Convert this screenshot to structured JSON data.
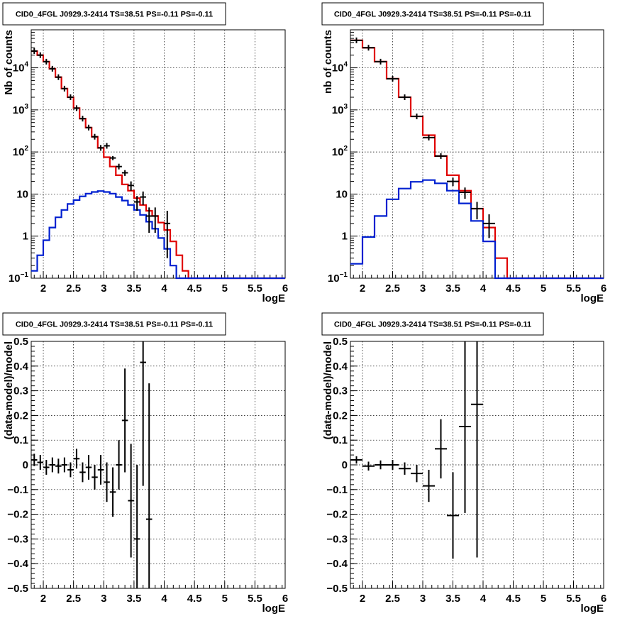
{
  "chart_data": [
    {
      "type": "line",
      "panel": "top-left",
      "title": "CID0_4FGL J0929.3-2414 TS=38.51 PS=-0.11 PS=-0.11",
      "xlabel": "logE",
      "ylabel": "Nb of counts",
      "log_y": true,
      "grid": true,
      "xlim": [
        1.8,
        6
      ],
      "ylim": [
        0.1,
        80000
      ],
      "xticks": [
        "2",
        "2.5",
        "3",
        "3.5",
        "4",
        "4.5",
        "5",
        "5.5",
        "6"
      ],
      "yticks": [
        "10^-1",
        "1",
        "10",
        "10^2",
        "10^3",
        "10^4"
      ],
      "bin_edges": [
        1.8,
        1.9,
        2.0,
        2.1,
        2.2,
        2.3,
        2.4,
        2.5,
        2.6,
        2.7,
        2.8,
        2.9,
        3.0,
        3.1,
        3.2,
        3.3,
        3.4,
        3.5,
        3.6,
        3.7,
        3.8,
        3.9,
        4.0,
        4.1,
        4.2,
        4.3,
        4.4,
        4.5,
        4.6,
        4.7,
        4.8,
        4.9,
        5.0,
        5.1,
        5.2,
        5.3,
        5.4,
        5.5,
        5.6,
        5.7,
        5.8,
        5.9,
        6.0
      ],
      "series": [
        {
          "color": "#e00000",
          "style": "histogram",
          "values": [
            25000,
            20000,
            14000,
            9500,
            6000,
            3200,
            2000,
            1100,
            620,
            380,
            230,
            125,
            75,
            45,
            28,
            17,
            12,
            8,
            5.5,
            4,
            3,
            2.1,
            1.4,
            0.75,
            0.35,
            0.15,
            0.1,
            0.1,
            0.1,
            0.1,
            0.1,
            0.1,
            0.1,
            0.1,
            0.1,
            0.1,
            0.1,
            0.1,
            0.1,
            0.1,
            0.1,
            0.1
          ]
        },
        {
          "color": "#0020d0",
          "style": "histogram",
          "values": [
            0.15,
            0.35,
            0.8,
            1.6,
            2.8,
            4.2,
            5.8,
            7.2,
            8.8,
            10.2,
            11.2,
            11.8,
            11.2,
            10.2,
            8.5,
            7,
            5.5,
            4.2,
            3.2,
            2.2,
            1.5,
            0.9,
            0.5,
            0.2,
            0.1,
            0.1,
            0.1,
            0.1,
            0.1,
            0.1,
            0.1,
            0.1,
            0.1,
            0.1,
            0.1,
            0.1,
            0.1,
            0.1,
            0.1,
            0.1,
            0.1,
            0.1
          ]
        },
        {
          "color": "#000000",
          "style": "points",
          "points": [
            [
              1.85,
              25000,
              0,
              0
            ],
            [
              1.95,
              20000,
              0,
              0
            ],
            [
              2.05,
              14000,
              0,
              0
            ],
            [
              2.15,
              9500,
              0,
              0
            ],
            [
              2.25,
              6000,
              0,
              0
            ],
            [
              2.35,
              3200,
              0,
              0
            ],
            [
              2.45,
              2000,
              0,
              0
            ],
            [
              2.55,
              1100,
              0,
              0
            ],
            [
              2.65,
              620,
              0,
              0
            ],
            [
              2.75,
              380,
              0,
              0
            ],
            [
              2.85,
              230,
              0,
              0
            ],
            [
              2.95,
              125,
              0,
              0
            ],
            [
              3.05,
              140,
              0,
              0
            ],
            [
              3.15,
              72,
              8,
              8
            ],
            [
              3.25,
              45,
              0,
              0
            ],
            [
              3.35,
              32,
              5,
              5
            ],
            [
              3.45,
              16,
              4,
              4
            ],
            [
              3.55,
              6.5,
              2.5,
              2.5
            ],
            [
              3.65,
              8.5,
              3,
              3
            ],
            [
              3.75,
              3,
              1.8,
              1.8
            ],
            [
              3.85,
              3,
              1.8,
              1.8
            ],
            [
              4.05,
              2,
              1.7,
              2
            ]
          ]
        }
      ]
    },
    {
      "type": "line",
      "panel": "top-right",
      "title": "CID0_4FGL J0929.3-2414 TS=38.51 PS=-0.11 PS=-0.11",
      "xlabel": "logE",
      "ylabel": "nb of counts",
      "log_y": true,
      "grid": true,
      "xlim": [
        1.8,
        6
      ],
      "ylim": [
        0.1,
        80000
      ],
      "xticks": [
        "2",
        "2.5",
        "3",
        "3.5",
        "4",
        "4.5",
        "5",
        "5.5",
        "6"
      ],
      "yticks": [
        "10^-1",
        "1",
        "10",
        "10^2",
        "10^3",
        "10^4"
      ],
      "bin_edges": [
        1.8,
        2.0,
        2.2,
        2.4,
        2.6,
        2.8,
        3.0,
        3.2,
        3.4,
        3.6,
        3.8,
        4.0,
        4.2,
        4.4,
        4.6,
        4.8,
        5.0,
        5.2,
        5.4,
        5.6,
        5.8,
        6.0
      ],
      "series": [
        {
          "color": "#e00000",
          "style": "histogram",
          "values": [
            45000,
            30000,
            14000,
            5500,
            2000,
            700,
            250,
            80,
            28,
            12,
            4.5,
            1.6,
            0.3,
            0.1,
            0.1,
            0.1,
            0.1,
            0.1,
            0.1,
            0.1,
            0.1
          ]
        },
        {
          "color": "#0020d0",
          "style": "histogram",
          "values": [
            0.22,
            0.95,
            3.0,
            7.5,
            13.5,
            19.5,
            21.5,
            18,
            12,
            6,
            2.3,
            0.75,
            0.1,
            0.1,
            0.1,
            0.1,
            0.1,
            0.1,
            0.1,
            0.1,
            0.1
          ]
        },
        {
          "color": "#000000",
          "style": "points",
          "points": [
            [
              1.9,
              45000,
              0,
              0
            ],
            [
              2.1,
              30000,
              0,
              0
            ],
            [
              2.3,
              14000,
              0,
              0
            ],
            [
              2.5,
              5500,
              0,
              0
            ],
            [
              2.7,
              2000,
              0,
              0
            ],
            [
              2.9,
              700,
              0,
              0
            ],
            [
              3.1,
              220,
              0,
              0
            ],
            [
              3.3,
              80,
              0,
              0
            ],
            [
              3.5,
              20,
              4.5,
              4.5
            ],
            [
              3.7,
              11,
              3.3,
              3.3
            ],
            [
              3.9,
              4.5,
              2,
              2
            ],
            [
              4.1,
              2,
              1.1,
              1.3
            ]
          ]
        }
      ]
    },
    {
      "type": "scatter",
      "panel": "bottom-left",
      "title": "CID0_4FGL J0929.3-2414 TS=38.51 PS=-0.11 PS=-0.11",
      "xlabel": "logE",
      "ylabel": "(data-model)/model",
      "grid": true,
      "xlim": [
        1.8,
        6
      ],
      "ylim": [
        -0.5,
        0.5
      ],
      "xticks": [
        "2",
        "2.5",
        "3",
        "3.5",
        "4",
        "4.5",
        "5",
        "5.5",
        "6"
      ],
      "yticks": [
        "−0.5",
        "−0.4",
        "−0.3",
        "−0.2",
        "−0.1",
        "0",
        "0.1",
        "0.2",
        "0.3",
        "0.4",
        "0.5"
      ],
      "series": [
        {
          "color": "#000000",
          "x_halfwidth": 0.05,
          "points": [
            [
              1.85,
              0.02,
              0.025
            ],
            [
              1.95,
              0.01,
              0.03
            ],
            [
              2.05,
              -0.01,
              0.03
            ],
            [
              2.15,
              0.0,
              0.03
            ],
            [
              2.25,
              -0.005,
              0.03
            ],
            [
              2.35,
              0.0,
              0.03
            ],
            [
              2.45,
              -0.02,
              0.03
            ],
            [
              2.55,
              0.025,
              0.04
            ],
            [
              2.65,
              -0.03,
              0.04
            ],
            [
              2.75,
              -0.01,
              0.05
            ],
            [
              2.85,
              -0.05,
              0.05
            ],
            [
              2.95,
              -0.02,
              0.06
            ],
            [
              3.05,
              -0.07,
              0.08
            ],
            [
              3.15,
              -0.11,
              0.1
            ],
            [
              3.25,
              0.0,
              0.1
            ],
            [
              3.35,
              0.18,
              0.21
            ],
            [
              3.45,
              -0.145,
              0.23
            ],
            [
              3.55,
              -0.3,
              0.3
            ],
            [
              3.65,
              0.415,
              0.5
            ],
            [
              3.75,
              -0.22,
              0.55
            ]
          ]
        }
      ]
    },
    {
      "type": "scatter",
      "panel": "bottom-right",
      "title": "CID0_4FGL J0929.3-2414 TS=38.51 PS=-0.11 PS=-0.11",
      "xlabel": "logE",
      "ylabel": "(data-model)/model",
      "grid": true,
      "xlim": [
        1.8,
        6
      ],
      "ylim": [
        -0.5,
        0.5
      ],
      "xticks": [
        "2",
        "2.5",
        "3",
        "3.5",
        "4",
        "4.5",
        "5",
        "5.5",
        "6"
      ],
      "yticks": [
        "−0.5",
        "−0.4",
        "−0.3",
        "−0.2",
        "−0.1",
        "0",
        "0.1",
        "0.2",
        "0.3",
        "0.4",
        "0.5"
      ],
      "series": [
        {
          "color": "#000000",
          "x_halfwidth": 0.1,
          "points": [
            [
              1.9,
              0.02,
              0.015
            ],
            [
              2.1,
              -0.005,
              0.018
            ],
            [
              2.3,
              0.0,
              0.018
            ],
            [
              2.5,
              0.0,
              0.02
            ],
            [
              2.7,
              -0.015,
              0.025
            ],
            [
              2.9,
              -0.035,
              0.035
            ],
            [
              3.1,
              -0.085,
              0.065
            ],
            [
              3.3,
              0.065,
              0.12
            ],
            [
              3.5,
              -0.205,
              0.175
            ],
            [
              3.7,
              0.155,
              0.35
            ],
            [
              3.9,
              0.245,
              0.62
            ]
          ]
        }
      ]
    }
  ]
}
